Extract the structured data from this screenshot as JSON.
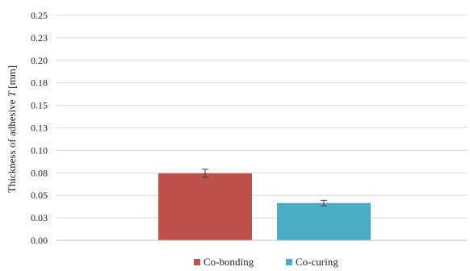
{
  "chart_data": {
    "type": "bar",
    "title": "",
    "xlabel": "",
    "ylabel_prefix": "Thickness of adhesive ",
    "ylabel_symbol": "T",
    "ylabel_suffix": " [mm]",
    "ylim": [
      0,
      0.25
    ],
    "y_ticks": [
      0.0,
      0.025,
      0.05,
      0.075,
      0.1,
      0.125,
      0.15,
      0.175,
      0.2,
      0.225,
      0.25
    ],
    "y_tick_labels": [
      "0.00",
      "0.03",
      "0.05",
      "0.08",
      "0.10",
      "0.13",
      "0.15",
      "0.18",
      "0.20",
      "0.23",
      "0.25"
    ],
    "grid": true,
    "legend_position": "bottom",
    "series": [
      {
        "name": "Co-bonding",
        "value": 0.0745,
        "error": 0.0045,
        "color": "#C0504D"
      },
      {
        "name": "Co-curing",
        "value": 0.0415,
        "error": 0.003,
        "color": "#4BACC6"
      }
    ]
  }
}
